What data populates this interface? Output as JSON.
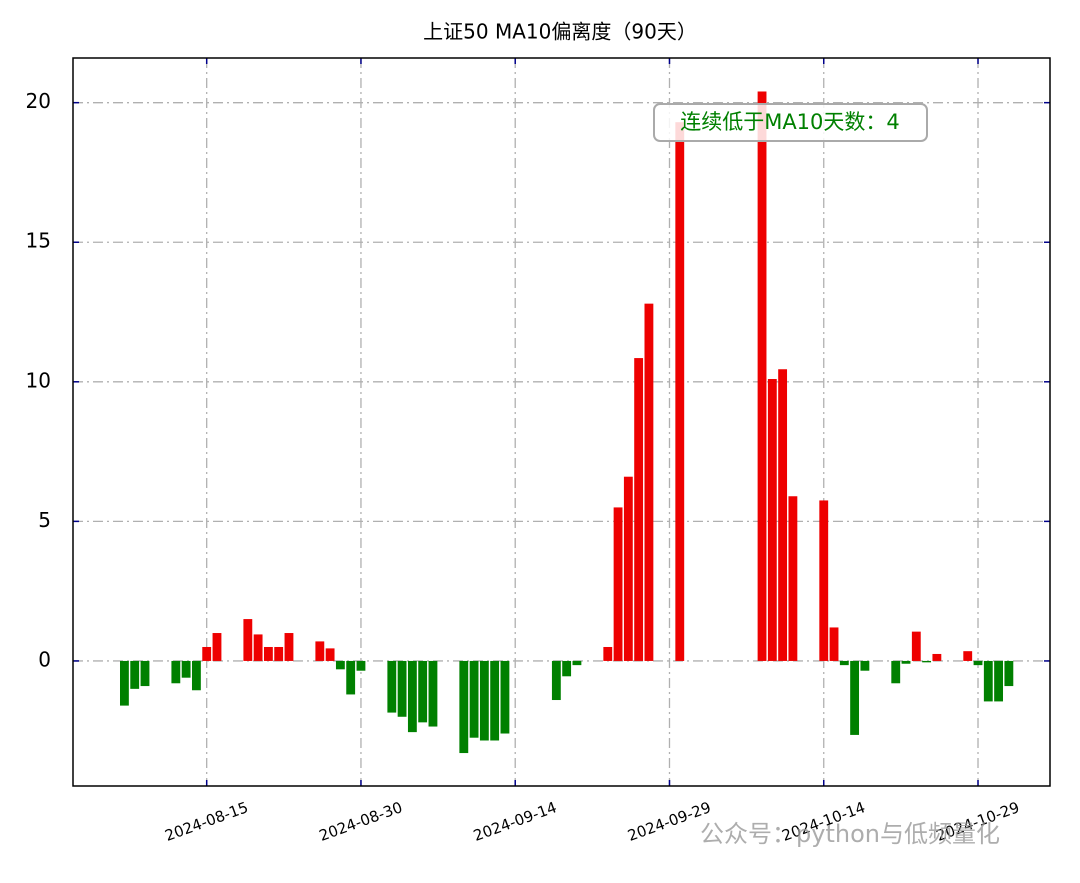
{
  "chart_data": {
    "type": "bar",
    "title": "上证50 MA10偏离度（90天）",
    "annotation": "连续低于MA10天数：4",
    "watermark": "公众号：python与低频量化",
    "x": [
      "2024-08-07",
      "2024-08-08",
      "2024-08-09",
      "2024-08-12",
      "2024-08-13",
      "2024-08-14",
      "2024-08-15",
      "2024-08-16",
      "2024-08-19",
      "2024-08-20",
      "2024-08-21",
      "2024-08-22",
      "2024-08-23",
      "2024-08-26",
      "2024-08-27",
      "2024-08-28",
      "2024-08-29",
      "2024-08-30",
      "2024-09-02",
      "2024-09-03",
      "2024-09-04",
      "2024-09-05",
      "2024-09-06",
      "2024-09-09",
      "2024-09-10",
      "2024-09-11",
      "2024-09-12",
      "2024-09-13",
      "2024-09-18",
      "2024-09-19",
      "2024-09-20",
      "2024-09-23",
      "2024-09-24",
      "2024-09-25",
      "2024-09-26",
      "2024-09-27",
      "2024-09-30",
      "2024-10-08",
      "2024-10-09",
      "2024-10-10",
      "2024-10-11",
      "2024-10-14",
      "2024-10-15",
      "2024-10-16",
      "2024-10-17",
      "2024-10-18",
      "2024-10-21",
      "2024-10-22",
      "2024-10-23",
      "2024-10-24",
      "2024-10-25",
      "2024-10-28",
      "2024-10-29",
      "2024-10-30",
      "2024-10-31",
      "2024-11-01"
    ],
    "values": [
      -1.6,
      -1.0,
      -0.9,
      -0.8,
      -0.6,
      -1.05,
      0.5,
      1.0,
      1.5,
      0.95,
      0.5,
      0.5,
      1.0,
      0.7,
      0.45,
      -0.3,
      -1.2,
      -0.35,
      -1.85,
      -2.0,
      -2.55,
      -2.2,
      -2.35,
      -3.3,
      -2.75,
      -2.85,
      -2.85,
      -2.6,
      -1.4,
      -0.55,
      -0.15,
      0.5,
      5.5,
      6.6,
      10.85,
      12.8,
      19.3,
      20.4,
      10.1,
      10.45,
      5.9,
      5.75,
      1.2,
      -0.15,
      -2.65,
      -0.35,
      -0.8,
      -0.1,
      1.05,
      -0.05,
      0.25,
      0.35,
      -0.15,
      -1.45,
      -1.45,
      -0.9
    ],
    "positive_color": "#ee0000",
    "negative_color": "#008000",
    "xlim": [
      "2024-08-02",
      "2024-11-05"
    ],
    "xticks": [
      "2024-08-15",
      "2024-08-30",
      "2024-09-14",
      "2024-09-29",
      "2024-10-14",
      "2024-10-29"
    ],
    "ylim": [
      -4.48,
      21.6
    ],
    "yticks": [
      0,
      5,
      10,
      15,
      20
    ],
    "grid": true
  }
}
